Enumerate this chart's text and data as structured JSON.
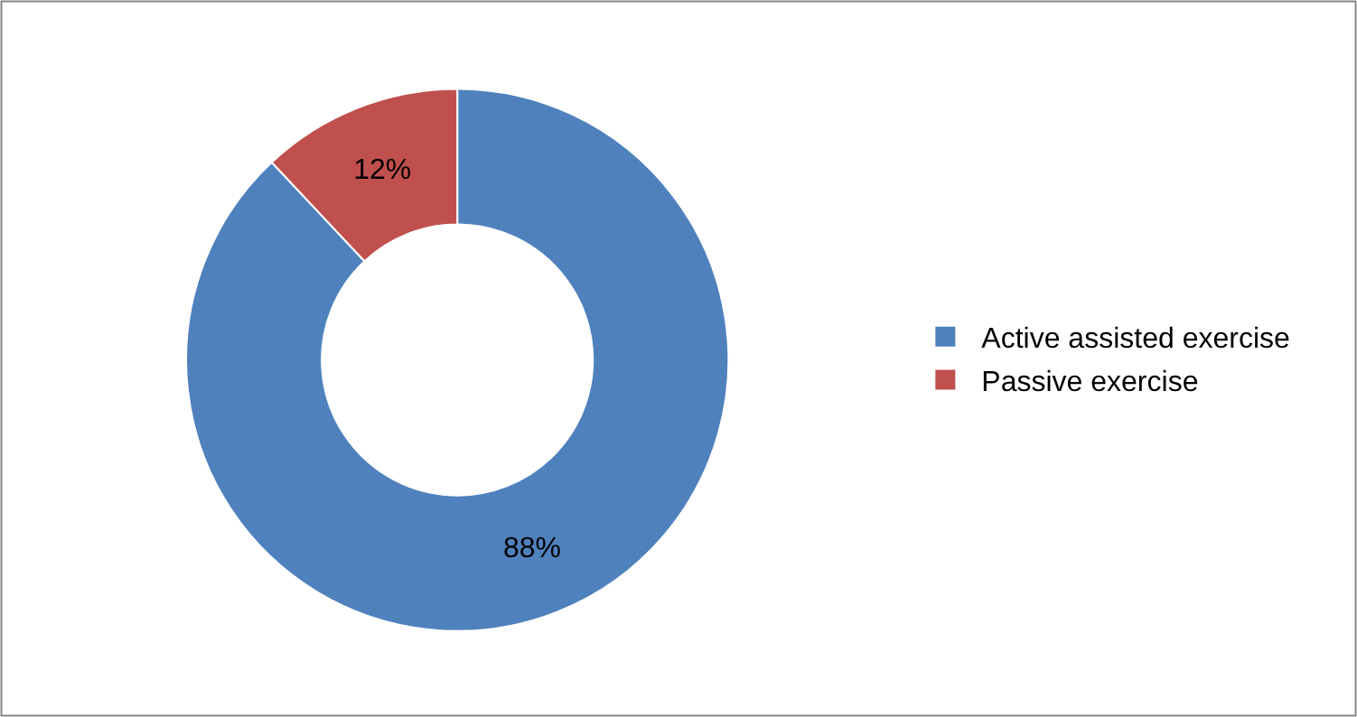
{
  "chart_data": {
    "type": "donut",
    "categories": [
      "Active assisted exercise",
      "Passive exercise"
    ],
    "values": [
      88,
      12
    ],
    "colors": [
      "#4f81bd",
      "#c0504d"
    ],
    "value_labels": [
      "88%",
      "12%"
    ],
    "legend": "right"
  }
}
